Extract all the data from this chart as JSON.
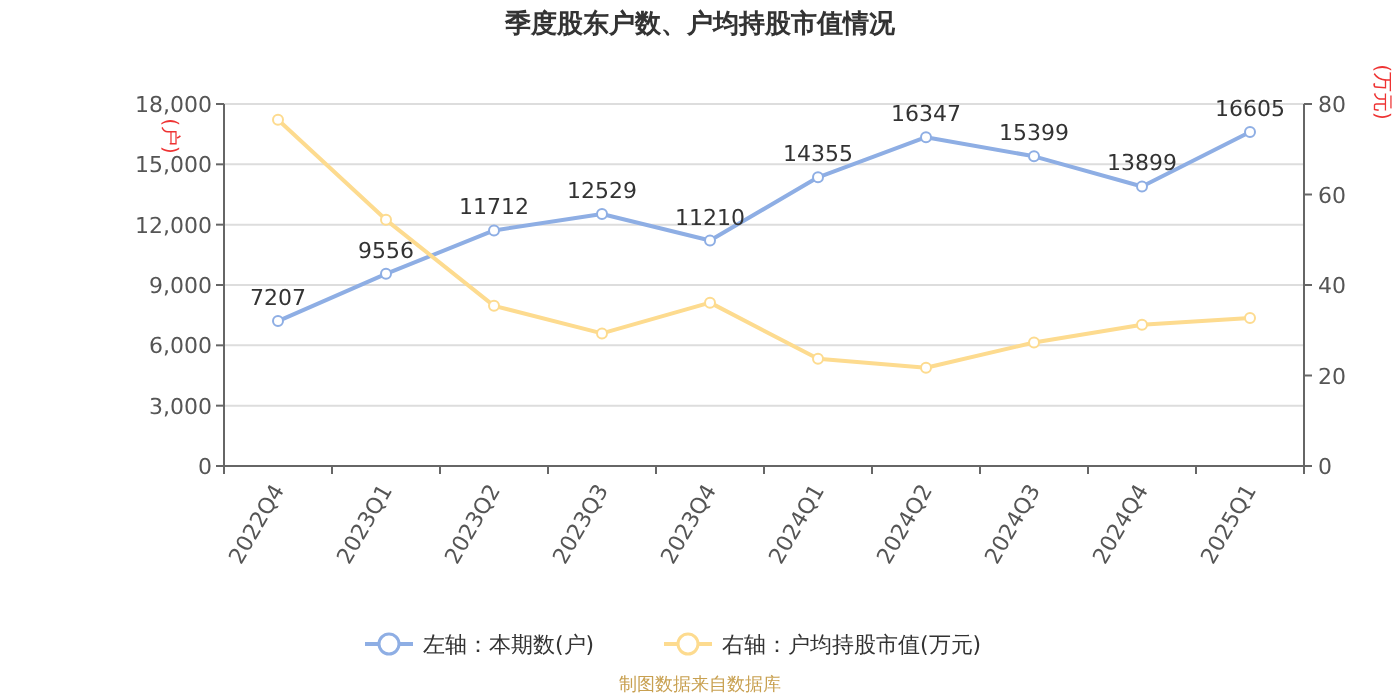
{
  "chart_data": {
    "type": "line",
    "title": "季度股东户数、户均持股市值情况",
    "ylabel": "(户)",
    "y2label": "(万元)",
    "categories": [
      "2022Q4",
      "2023Q1",
      "2023Q2",
      "2023Q3",
      "2023Q4",
      "2024Q1",
      "2024Q2",
      "2024Q3",
      "2024Q4",
      "2025Q1"
    ],
    "series": [
      {
        "name": "左轴：本期数(户)",
        "color": "#8eaee4",
        "values": [
          7207,
          9556,
          11712,
          12529,
          11210,
          14355,
          16347,
          15399,
          13899,
          16605
        ],
        "value_labels": [
          "7207",
          "9556",
          "11712",
          "12529",
          "11210",
          "14355",
          "16347",
          "15399",
          "13899",
          "16605"
        ]
      },
      {
        "name": "右轴：户均持股市值(万元)",
        "color": "#fddb8f",
        "axis": "y2",
        "values": [
          76.5,
          54.4,
          35.4,
          29.3,
          36.1,
          23.7,
          21.7,
          27.3,
          31.2,
          32.7
        ]
      }
    ],
    "ylim": [
      0,
      18000
    ],
    "yticks": [
      {
        "value": 0,
        "label": "0"
      },
      {
        "value": 3000,
        "label": "3,000"
      },
      {
        "value": 6000,
        "label": "6,000"
      },
      {
        "value": 9000,
        "label": "9,000"
      },
      {
        "value": 12000,
        "label": "12,000"
      },
      {
        "value": 15000,
        "label": "15,000"
      },
      {
        "value": 18000,
        "label": "18,000"
      }
    ],
    "y2lim": [
      0,
      80
    ],
    "y2ticks": [
      0,
      20,
      40,
      60,
      80
    ],
    "grid": "y",
    "legend": "bottom",
    "marker": "circle",
    "line_style": "solid",
    "annotations": [
      "制图数据来自数据库"
    ]
  }
}
